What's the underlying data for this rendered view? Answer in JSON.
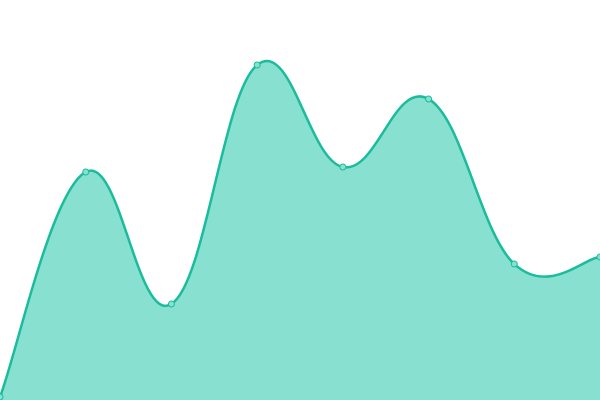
{
  "chart_data": {
    "type": "area",
    "categories": [
      null,
      null,
      null,
      null,
      null,
      null,
      null,
      null
    ],
    "series": [
      {
        "color": "#1abc9c",
        "values": [
          3,
          228,
          96,
          335,
          233,
          301,
          136,
          143
        ]
      }
    ],
    "fill": "#88e0d0",
    "ylim": [
      0,
      400
    ]
  }
}
